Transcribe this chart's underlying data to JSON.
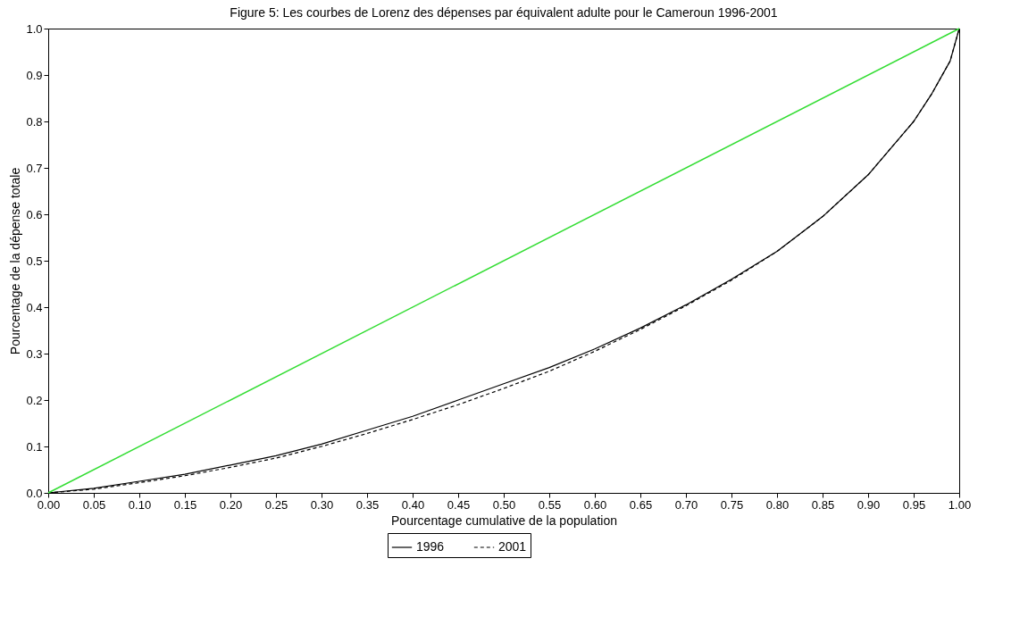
{
  "chart_data": {
    "type": "line",
    "title": "Figure 5:  Les courbes de Lorenz des dépenses par équivalent  adulte pour le Cameroun 1996-2001",
    "xlabel": "Pourcentage cumulative de la population",
    "ylabel": "Pourcentage de la dépense totale",
    "xlim": [
      0,
      1
    ],
    "ylim": [
      0,
      1
    ],
    "xticks": [
      {
        "value": 0,
        "label": "0.00"
      },
      {
        "value": 0.05,
        "label": "0.05"
      },
      {
        "value": 0.1,
        "label": "0.10"
      },
      {
        "value": 0.15,
        "label": "0.15"
      },
      {
        "value": 0.2,
        "label": "0.20"
      },
      {
        "value": 0.25,
        "label": "0.25"
      },
      {
        "value": 0.3,
        "label": "0.30"
      },
      {
        "value": 0.35,
        "label": "0.35"
      },
      {
        "value": 0.4,
        "label": "0.40"
      },
      {
        "value": 0.45,
        "label": "0.45"
      },
      {
        "value": 0.5,
        "label": "0.50"
      },
      {
        "value": 0.55,
        "label": "0.55"
      },
      {
        "value": 0.6,
        "label": "0.60"
      },
      {
        "value": 0.65,
        "label": "0.65"
      },
      {
        "value": 0.7,
        "label": "0.70"
      },
      {
        "value": 0.75,
        "label": "0.75"
      },
      {
        "value": 0.8,
        "label": "0.80"
      },
      {
        "value": 0.85,
        "label": "0.85"
      },
      {
        "value": 0.9,
        "label": "0.90"
      },
      {
        "value": 0.95,
        "label": "0.95"
      },
      {
        "value": 1,
        "label": "1.00"
      }
    ],
    "yticks": [
      {
        "value": 0,
        "label": "0.0"
      },
      0.1,
      0.2,
      0.3,
      0.4,
      0.5,
      0.6,
      0.7,
      0.8,
      0.9,
      {
        "value": 1,
        "label": "1.0"
      }
    ],
    "grid": false,
    "legend": "bottom",
    "marker": "none",
    "series": [
      {
        "name": "1996",
        "color": "#000000",
        "line_style": "solid",
        "x": [
          0,
          0.05,
          0.1,
          0.15,
          0.2,
          0.25,
          0.3,
          0.35,
          0.4,
          0.45,
          0.5,
          0.55,
          0.6,
          0.65,
          0.7,
          0.75,
          0.8,
          0.85,
          0.9,
          0.95,
          0.97,
          0.99,
          1
        ],
        "values": [
          0,
          0.01,
          0.025,
          0.04,
          0.06,
          0.08,
          0.105,
          0.135,
          0.165,
          0.2,
          0.235,
          0.27,
          0.31,
          0.355,
          0.405,
          0.46,
          0.52,
          0.595,
          0.685,
          0.8,
          0.86,
          0.93,
          1
        ]
      },
      {
        "name": "2001",
        "color": "#000000",
        "line_style": "dashed",
        "x": [
          0,
          0.05,
          0.1,
          0.15,
          0.2,
          0.25,
          0.3,
          0.35,
          0.4,
          0.45,
          0.5,
          0.55,
          0.6,
          0.65,
          0.7,
          0.75,
          0.8,
          0.85,
          0.9,
          0.95,
          0.97,
          0.99,
          1
        ],
        "values": [
          0,
          0.008,
          0.022,
          0.037,
          0.055,
          0.075,
          0.1,
          0.128,
          0.158,
          0.19,
          0.225,
          0.262,
          0.305,
          0.352,
          0.403,
          0.458,
          0.52,
          0.595,
          0.685,
          0.8,
          0.86,
          0.93,
          1
        ]
      },
      {
        "color": "#33dd33",
        "line_style": "solid",
        "x": [
          0,
          1
        ],
        "values": [
          0,
          1
        ]
      }
    ]
  }
}
